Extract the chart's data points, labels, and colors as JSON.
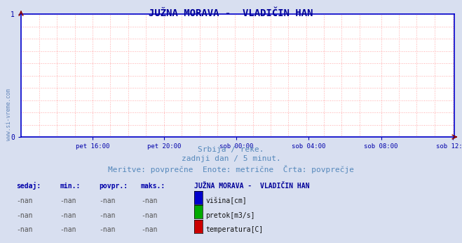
{
  "title": "JUŽNA MORAVA -  VLADIČIN HAN",
  "title_color": "#000099",
  "title_fontsize": 10,
  "bg_color": "#d8dff0",
  "plot_bg_color": "#ffffff",
  "xlim": [
    0,
    1
  ],
  "ylim": [
    0,
    1
  ],
  "yticks": [
    0,
    1
  ],
  "xtick_labels": [
    "pet 16:00",
    "pet 20:00",
    "sob 00:00",
    "sob 04:00",
    "sob 08:00",
    "sob 12:00"
  ],
  "xtick_positions": [
    0.165,
    0.33,
    0.497,
    0.664,
    0.831,
    0.997
  ],
  "vgrid_positions": [
    0.0415,
    0.083,
    0.124,
    0.165,
    0.206,
    0.247,
    0.288,
    0.33,
    0.371,
    0.412,
    0.453,
    0.494,
    0.535,
    0.576,
    0.617,
    0.658,
    0.699,
    0.74,
    0.781,
    0.831,
    0.872,
    0.913,
    0.954,
    0.997
  ],
  "hgrid_positions": [
    0.0,
    0.1,
    0.2,
    0.3,
    0.4,
    0.5,
    0.6,
    0.7,
    0.8,
    0.9,
    1.0
  ],
  "grid_color": "#ffaaaa",
  "grid_linestyle": ":",
  "spine_color": "#0000cc",
  "tick_color": "#0000aa",
  "watermark": "www.si-vreme.com",
  "watermark_color": "#6688bb",
  "subtitle1": "Srbija / reke.",
  "subtitle2": "zadnji dan / 5 minut.",
  "subtitle3": "Meritve: povprečne  Enote: metrične  Črta: povprečje",
  "subtitle_color": "#5588bb",
  "subtitle_fontsize": 8,
  "table_header": [
    "sedaj:",
    "min.:",
    "povpr.:",
    "maks.:"
  ],
  "table_header_color": "#0000aa",
  "table_values": [
    "-nan",
    "-nan",
    "-nan",
    "-nan"
  ],
  "legend_title": "JUŽNA MORAVA -  VLADIČIN HAN",
  "legend_title_color": "#000099",
  "legend_items": [
    "višina[cm]",
    "pretok[m3/s]",
    "temperatura[C]"
  ],
  "legend_colors": [
    "#0000cc",
    "#00aa00",
    "#cc0000"
  ],
  "arrow_color": "#880000",
  "line_color": "#0000aa"
}
